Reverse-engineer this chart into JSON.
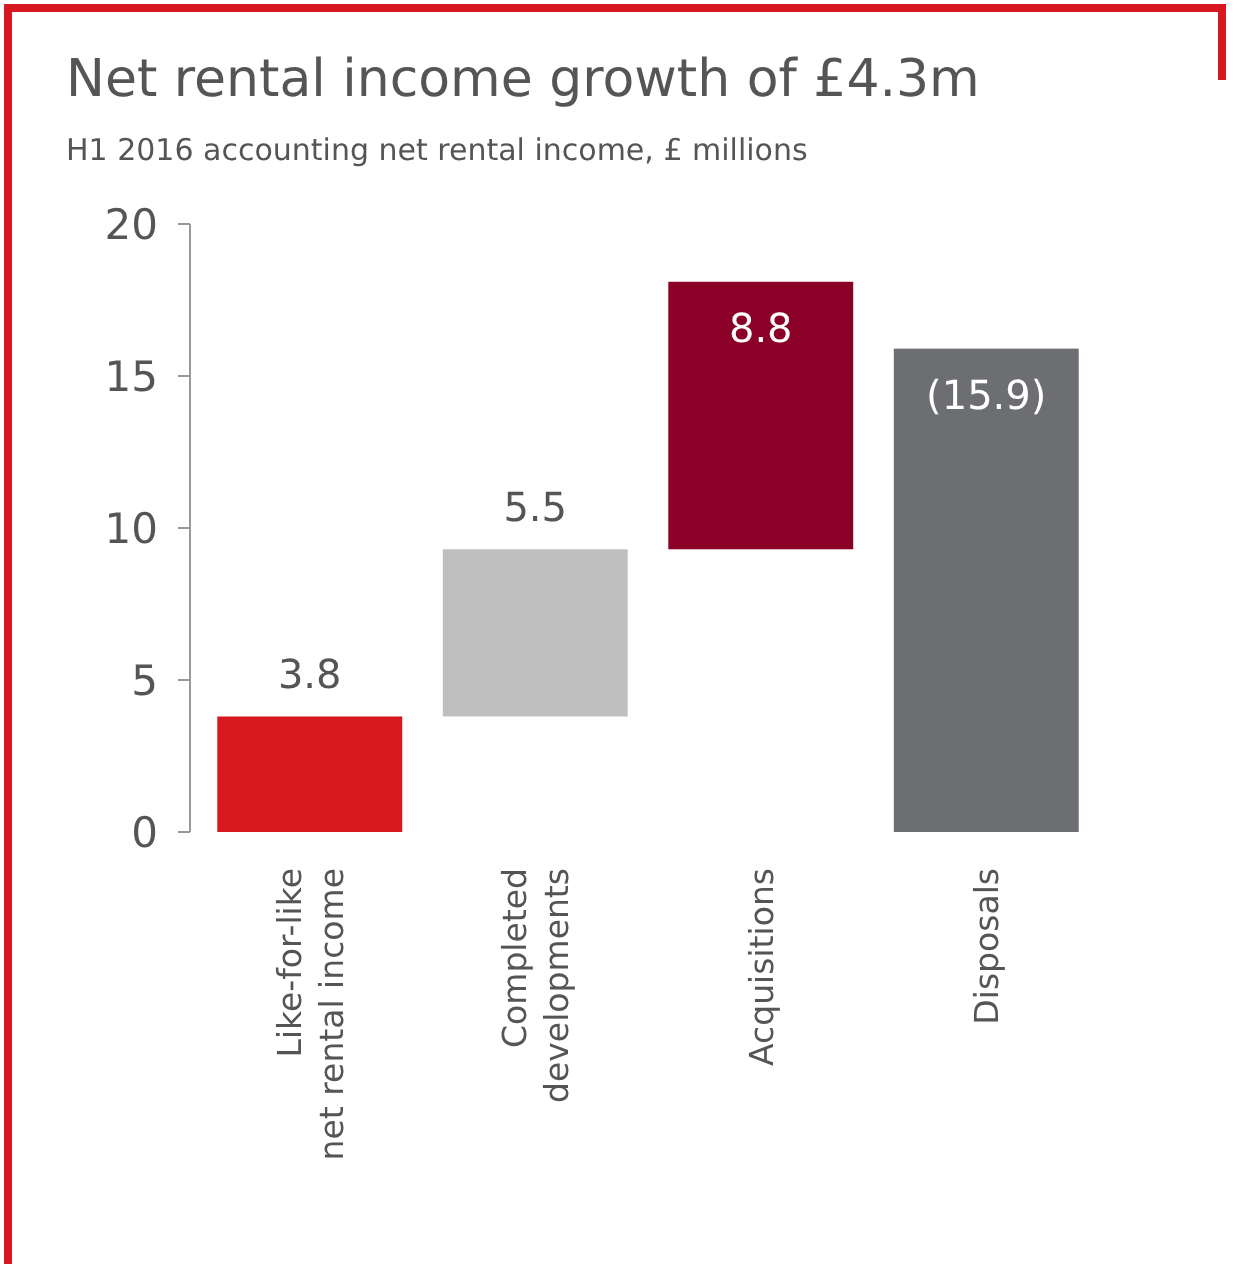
{
  "chart_data": {
    "type": "bar",
    "title": "Net rental income growth of £4.3m",
    "subtitle": "H1 2016 accounting net rental income, £ millions",
    "categories": [
      "Like-for-like\nnet rental income",
      "Completed\ndevelopments",
      "Acquisitions",
      "Disposals"
    ],
    "values": [
      3.8,
      5.5,
      8.8,
      15.9
    ],
    "base": [
      0,
      3.8,
      9.3,
      0
    ],
    "colors": [
      "#d7191f",
      "#bfbfbf",
      "#8b0026",
      "#6d6e71"
    ],
    "value_labels": [
      "3.8",
      "5.5",
      "8.8",
      "(15.9)"
    ],
    "ylim": [
      0,
      20
    ],
    "yticks": [
      0,
      5,
      10,
      15,
      20
    ],
    "grid": false
  }
}
